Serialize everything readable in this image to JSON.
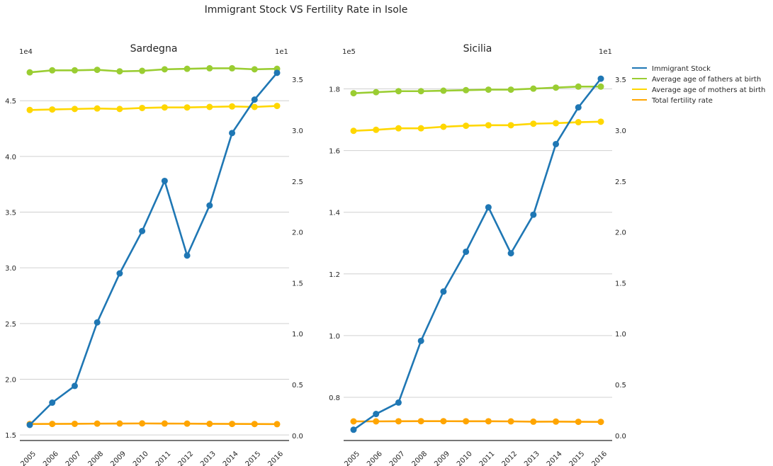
{
  "suptitle": "Immigrant Stock VS Fertility Rate in Isole",
  "legend": {
    "placement": "top-right, outside plots",
    "entries": [
      {
        "label": "Immigrant Stock",
        "color": "#1f77b4"
      },
      {
        "label": "Average age of fathers at birth",
        "color": "#9acd32"
      },
      {
        "label": "Average age of mothers at birth",
        "color": "#ffd700"
      },
      {
        "label": "Total fertility rate",
        "color": "#ffa500"
      }
    ]
  },
  "chart_data": [
    {
      "type": "line",
      "title": "Sardegna",
      "categories": [
        "2005",
        "2006",
        "2007",
        "2008",
        "2009",
        "2010",
        "2011",
        "2012",
        "2013",
        "2014",
        "2015",
        "2016"
      ],
      "left_axis": {
        "offset_label": "1e4",
        "ticks": [
          "1.5",
          "2.0",
          "2.5",
          "3.0",
          "3.5",
          "4.0",
          "4.5"
        ],
        "ylim": [
          1.45,
          4.8
        ],
        "grid": true
      },
      "right_axis": {
        "offset_label": "1e1",
        "ticks": [
          "0.0",
          "0.5",
          "1.0",
          "1.5",
          "2.0",
          "2.5",
          "3.0",
          "3.5"
        ],
        "ylim": [
          -0.05,
          3.62
        ]
      },
      "series": [
        {
          "name": "Immigrant Stock",
          "axis": "left",
          "color": "#1f77b4",
          "values": [
            1.59,
            1.79,
            1.94,
            2.51,
            2.95,
            3.33,
            3.78,
            3.11,
            3.56,
            4.21,
            4.51,
            4.75
          ]
        },
        {
          "name": "Average age of fathers at birth",
          "axis": "right",
          "color": "#9acd32",
          "values": [
            3.57,
            3.59,
            3.59,
            3.595,
            3.58,
            3.585,
            3.6,
            3.605,
            3.61,
            3.61,
            3.6,
            3.605
          ]
        },
        {
          "name": "Average age of mothers at birth",
          "axis": "right",
          "color": "#ffd700",
          "values": [
            3.2,
            3.205,
            3.21,
            3.215,
            3.21,
            3.22,
            3.225,
            3.225,
            3.23,
            3.235,
            3.23,
            3.24
          ]
        },
        {
          "name": "Total fertility rate",
          "axis": "right",
          "color": "#ffa500",
          "values": [
            0.112,
            0.113,
            0.114,
            0.116,
            0.117,
            0.118,
            0.117,
            0.116,
            0.114,
            0.113,
            0.112,
            0.111
          ]
        }
      ]
    },
    {
      "type": "line",
      "title": "Sicilia",
      "categories": [
        "2005",
        "2006",
        "2007",
        "2008",
        "2009",
        "2010",
        "2011",
        "2012",
        "2013",
        "2014",
        "2015",
        "2016"
      ],
      "left_axis": {
        "offset_label": "1e5",
        "ticks": [
          "0.8",
          "1.0",
          "1.2",
          "1.4",
          "1.6",
          "1.8"
        ],
        "ylim": [
          0.66,
          1.87
        ],
        "grid": true
      },
      "right_axis": {
        "offset_label": "1e1",
        "ticks": [
          "0.0",
          "0.5",
          "1.0",
          "1.5",
          "2.0",
          "2.5",
          "3.0",
          "3.5"
        ],
        "ylim": [
          -0.05,
          3.62
        ]
      },
      "series": [
        {
          "name": "Immigrant Stock",
          "axis": "left",
          "color": "#1f77b4",
          "values": [
            0.695,
            0.746,
            0.783,
            0.983,
            1.143,
            1.272,
            1.416,
            1.267,
            1.392,
            1.621,
            1.74,
            1.833
          ]
        },
        {
          "name": "Average age of fathers at birth",
          "axis": "right",
          "color": "#9acd32",
          "values": [
            3.365,
            3.375,
            3.385,
            3.385,
            3.39,
            3.395,
            3.4,
            3.4,
            3.41,
            3.42,
            3.43,
            3.43
          ]
        },
        {
          "name": "Average age of mothers at birth",
          "axis": "right",
          "color": "#ffd700",
          "values": [
            2.995,
            3.005,
            3.02,
            3.02,
            3.035,
            3.045,
            3.05,
            3.05,
            3.065,
            3.07,
            3.08,
            3.085
          ]
        },
        {
          "name": "Total fertility rate",
          "axis": "right",
          "color": "#ffa500",
          "values": [
            0.138,
            0.138,
            0.139,
            0.14,
            0.14,
            0.139,
            0.139,
            0.138,
            0.135,
            0.136,
            0.134,
            0.133
          ]
        }
      ]
    }
  ]
}
